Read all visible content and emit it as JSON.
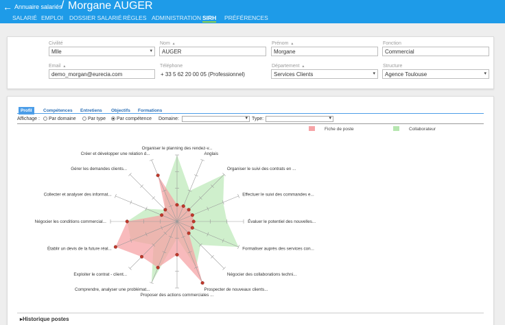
{
  "header": {
    "back_icon": "arrow-left-icon",
    "breadcrumb": "Annuaire salariés",
    "separator": "/",
    "title": "Morgane AUGER",
    "tabs": [
      "SALARIÉ",
      "EMPLOI",
      "DOSSIER SALARIÉ",
      "RÈGLES",
      "ADMINISTRATION",
      "SIRH",
      "PRÉFÉRENCES"
    ],
    "active_tab": "SIRH",
    "accent": "#1e9be8"
  },
  "identity": {
    "civilite": {
      "label": "Civilité",
      "value": "Mlle"
    },
    "nom": {
      "label": "Nom",
      "marker": "▴",
      "value": "AUGER"
    },
    "prenom": {
      "label": "Prénom",
      "marker": "▴",
      "value": "Morgane"
    },
    "fonction": {
      "label": "Fonction",
      "value": "Commercial"
    },
    "email": {
      "label": "Email",
      "marker": "▴",
      "value": "demo_morgan@eurecia.com"
    },
    "telephone": {
      "label": "Téléphone",
      "value": "+ 33 5 62 20 00 05 (Professionnel)"
    },
    "departement": {
      "label": "Département",
      "marker": "▴",
      "value": "Services Clients"
    },
    "structure": {
      "label": "Structure",
      "value": "Agence Toulouse"
    }
  },
  "sirh": {
    "subtabs": [
      "Profil",
      "Compétences",
      "Entretiens",
      "Objectifs",
      "Formations"
    ],
    "active_subtab": "Profil",
    "display_label": "Affichage :",
    "options": [
      "Par domaine",
      "Par type",
      "Par compétence"
    ],
    "selected_option": "Par compétence",
    "domain_label": "Domaine:",
    "domain_value": "",
    "type_label": "Type:",
    "type_value": "",
    "legend": [
      {
        "name": "Fiche de poste",
        "color": "#f6a3a6"
      },
      {
        "name": "Collaborateur",
        "color": "#b6e6b0"
      }
    ],
    "history_label": "Historique postes"
  },
  "chart_data": {
    "type": "radar",
    "scale_max": 4,
    "categories": [
      "Organiser le planning des rendez-v...",
      "Anglais",
      "Organiser le suivi des contrats en ...",
      "Effectuer le suivi des commandes e...",
      "Évaluer le potentiel des nouvelles...",
      "Formaliser auprès des services con...",
      "Négocier des collaborations techni...",
      "Prospecter de nouveaux clients...",
      "Proposer des actions commerciales ...",
      "Comprendre, analyser une problémat...",
      "Exploiter le contrat - client...",
      "Établir un devis de la future réal...",
      "Négocier les conditions commercial...",
      "Collecter et analyser des informat...",
      "Gérer les demandes clients...",
      "Créer et développer une relation d..."
    ],
    "series": [
      {
        "name": "Fiche de poste",
        "values": [
          1,
          1,
          1,
          1,
          1,
          1,
          1,
          4,
          2,
          3,
          3,
          4,
          3,
          1,
          1,
          3
        ]
      },
      {
        "name": "Collaborateur",
        "values": [
          4,
          2,
          4,
          3,
          3,
          4,
          2,
          3,
          1,
          4,
          2,
          3,
          3,
          2,
          1,
          2
        ]
      }
    ]
  }
}
